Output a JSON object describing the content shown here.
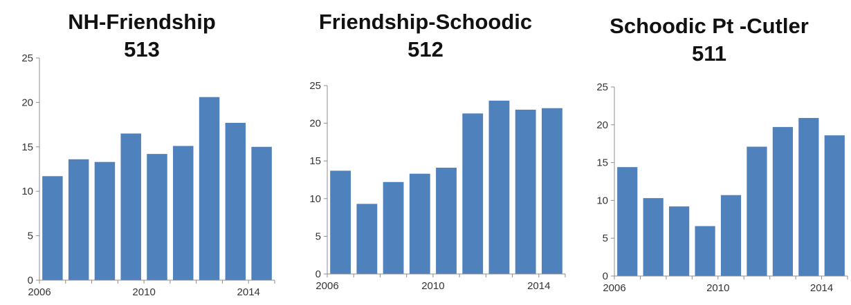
{
  "chart_data": [
    {
      "type": "bar",
      "title": "NH-Friendship",
      "subtitle": "513",
      "x": [
        2006,
        2007,
        2008,
        2009,
        2010,
        2011,
        2012,
        2013,
        2014
      ],
      "values": [
        11.7,
        13.6,
        13.3,
        16.5,
        14.2,
        15.1,
        20.6,
        17.7,
        15.0
      ],
      "xticks": [
        "2006",
        "2010",
        "2014"
      ],
      "yticks": [
        "0",
        "5",
        "10",
        "15",
        "20",
        "25"
      ],
      "ylim": [
        0,
        25
      ],
      "xlabel": "",
      "ylabel": "",
      "grid": false,
      "legend": "none",
      "bar_color": "#4f81bd"
    },
    {
      "type": "bar",
      "title": "Friendship-Schoodic",
      "subtitle": "512",
      "x": [
        2006,
        2007,
        2008,
        2009,
        2010,
        2011,
        2012,
        2013,
        2014
      ],
      "values": [
        13.7,
        9.3,
        12.2,
        13.3,
        14.1,
        21.3,
        23.0,
        21.8,
        22.0
      ],
      "xticks": [
        "2006",
        "2010",
        "2014"
      ],
      "yticks": [
        "0",
        "5",
        "10",
        "15",
        "20",
        "25"
      ],
      "ylim": [
        0,
        25
      ],
      "xlabel": "",
      "ylabel": "",
      "grid": false,
      "legend": "none",
      "bar_color": "#4f81bd"
    },
    {
      "type": "bar",
      "title": "Schoodic Pt -Cutler",
      "subtitle": "511",
      "x": [
        2006,
        2007,
        2008,
        2009,
        2010,
        2011,
        2012,
        2013,
        2014
      ],
      "values": [
        14.4,
        10.3,
        9.2,
        6.6,
        10.7,
        17.1,
        19.7,
        20.9,
        18.6
      ],
      "xticks": [
        "2006",
        "2010",
        "2014"
      ],
      "yticks": [
        "0",
        "5",
        "10",
        "15",
        "20",
        "25"
      ],
      "ylim": [
        0,
        25
      ],
      "xlabel": "",
      "ylabel": "",
      "grid": false,
      "legend": "none",
      "bar_color": "#4f81bd"
    }
  ]
}
